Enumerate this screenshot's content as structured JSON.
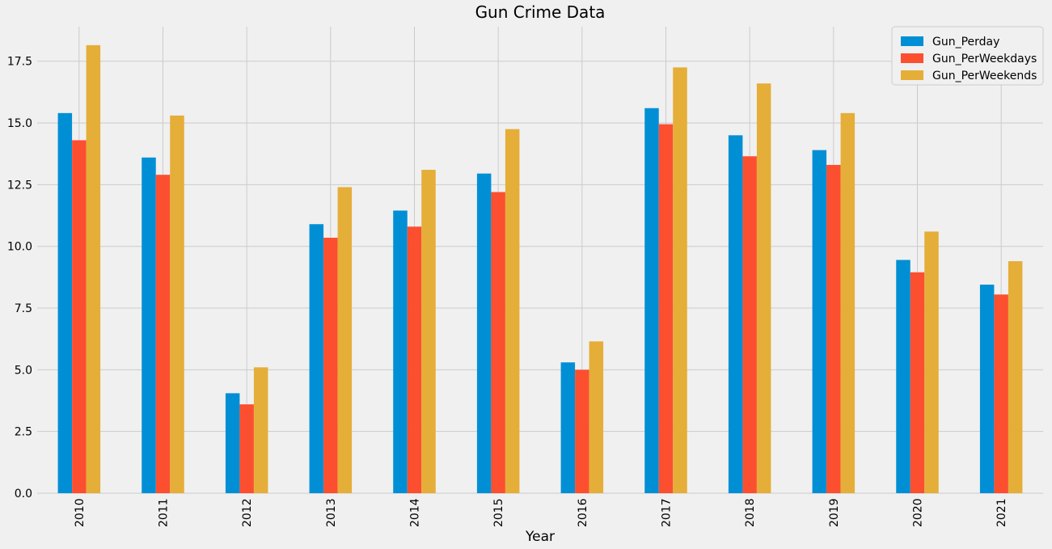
{
  "chart_data": {
    "type": "bar",
    "title": "Gun Crime Data",
    "xlabel": "Year",
    "ylabel": "",
    "ylim": [
      0,
      18.9
    ],
    "yticks": [
      0.0,
      2.5,
      5.0,
      7.5,
      10.0,
      12.5,
      15.0,
      17.5
    ],
    "ytick_labels": [
      "0.0",
      "2.5",
      "5.0",
      "7.5",
      "10.0",
      "12.5",
      "15.0",
      "17.5"
    ],
    "grid": true,
    "legend_position": "top-right",
    "categories": [
      "2010",
      "2011",
      "2012",
      "2013",
      "2014",
      "2015",
      "2016",
      "2017",
      "2018",
      "2019",
      "2020",
      "2021"
    ],
    "series": [
      {
        "name": "Gun_Perday",
        "color": "#008fd5",
        "values": [
          15.4,
          13.6,
          4.05,
          10.9,
          11.45,
          12.95,
          5.3,
          15.6,
          14.5,
          13.9,
          9.45,
          8.45
        ]
      },
      {
        "name": "Gun_PerWeekdays",
        "color": "#fc4f30",
        "values": [
          14.3,
          12.9,
          3.6,
          10.35,
          10.8,
          12.2,
          5.0,
          14.95,
          13.65,
          13.3,
          8.95,
          8.05
        ]
      },
      {
        "name": "Gun_PerWeekends",
        "color": "#e5ae38",
        "values": [
          18.15,
          15.3,
          5.1,
          12.4,
          13.1,
          14.75,
          6.15,
          17.25,
          16.6,
          15.4,
          10.6,
          9.4
        ]
      }
    ]
  }
}
